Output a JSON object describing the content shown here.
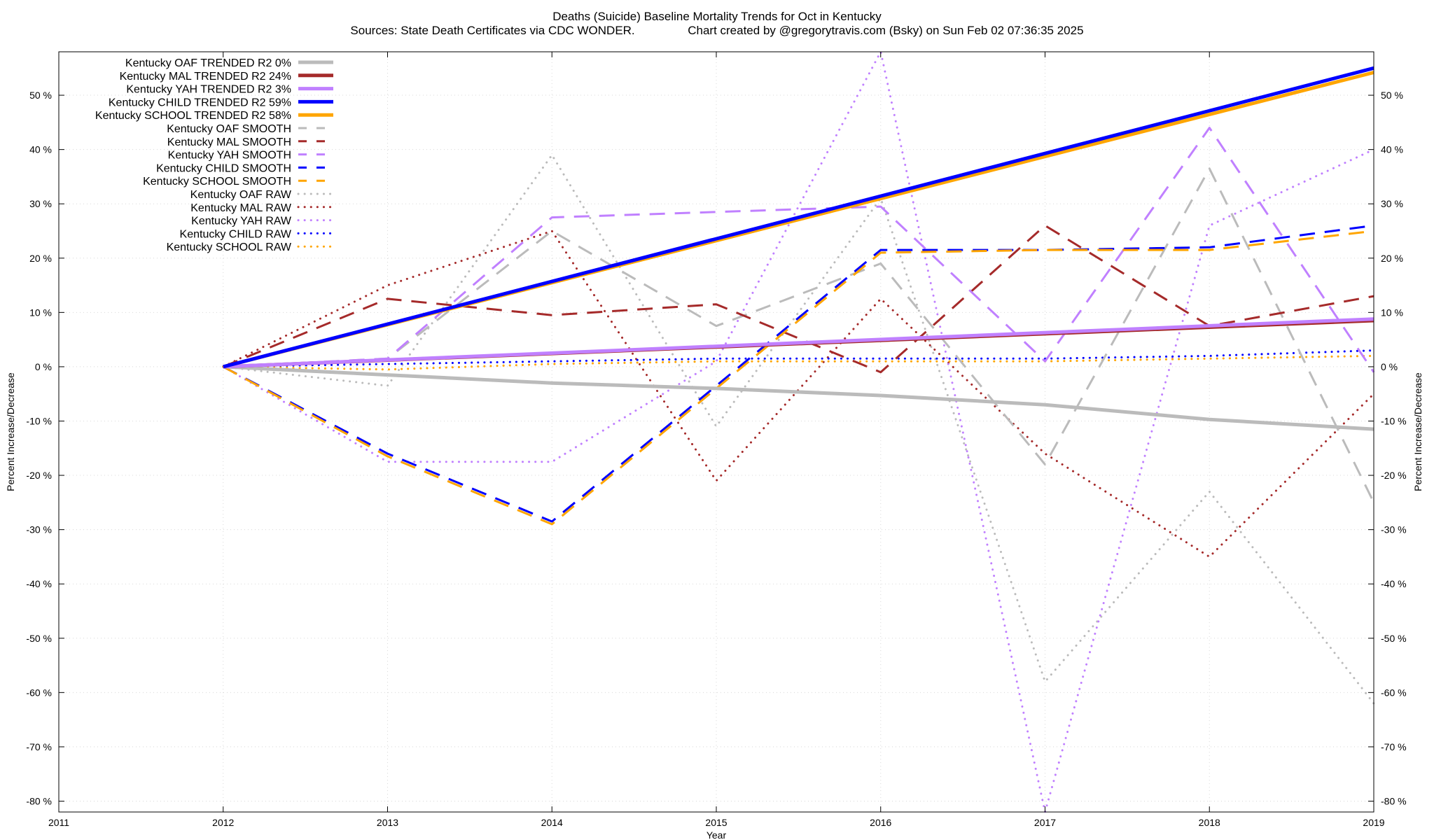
{
  "chart_data": {
    "type": "line",
    "title": "Deaths (Suicide)  Baseline Mortality Trends for Oct in Kentucky",
    "subtitle": "Sources: State Death Certificates via CDC WONDER.                Chart created by @gregorytravis.com (Bsky) on Sun Feb 02 07:36:35 2025",
    "xlabel": "Year",
    "ylabel": "Percent Increase/Decrease",
    "xlim": [
      2011,
      2019
    ],
    "ylim": [
      -82,
      58
    ],
    "x_ticks": [
      2011,
      2012,
      2013,
      2014,
      2015,
      2016,
      2017,
      2018,
      2019
    ],
    "x_tick_labels": [
      "2011",
      "2012",
      "2013",
      "2014",
      "2015",
      "2016",
      "2017",
      "2018",
      "2019"
    ],
    "y_ticks": [
      -80,
      -70,
      -60,
      -50,
      -40,
      -30,
      -20,
      -10,
      0,
      10,
      20,
      30,
      40,
      50
    ],
    "y_tick_labels": [
      "-80 %",
      "-70 %",
      "-60 %",
      "-50 %",
      "-40 %",
      "-30 %",
      "-20 %",
      "-10 %",
      "0 %",
      "10 %",
      "20 %",
      "30 %",
      "40 %",
      "50 %"
    ],
    "grid": true,
    "legend_position": "top-left",
    "series": [
      {
        "name": "Kentucky OAF TRENDED R2  0%",
        "style": "solid",
        "color": "#bbbbbb",
        "x": [
          2012,
          2013,
          2014,
          2015,
          2016,
          2017,
          2018,
          2019
        ],
        "values": [
          0,
          -1.5,
          -3,
          -4,
          -5.3,
          -7,
          -9.7,
          -11.5
        ]
      },
      {
        "name": "Kentucky MAL TRENDED R2  24%",
        "style": "solid",
        "color": "#a52a2a",
        "x": [
          2012,
          2019
        ],
        "values": [
          0,
          8.5
        ]
      },
      {
        "name": "Kentucky YAH TRENDED R2  3%",
        "style": "solid",
        "color": "#c080ff",
        "x": [
          2012,
          2019
        ],
        "values": [
          0,
          8.8
        ]
      },
      {
        "name": "Kentucky CHILD TRENDED R2  59%",
        "style": "solid",
        "color": "#0000ff",
        "x": [
          2012,
          2019
        ],
        "values": [
          0,
          55
        ]
      },
      {
        "name": "Kentucky SCHOOL TRENDED R2  58%",
        "style": "solid",
        "color": "#ffa500",
        "x": [
          2012,
          2019
        ],
        "values": [
          0,
          54.2
        ]
      },
      {
        "name": "Kentucky OAF SMOOTH",
        "style": "dashed",
        "color": "#bbbbbb",
        "x": [
          2012,
          2013,
          2014,
          2015,
          2016,
          2017,
          2018,
          2019
        ],
        "values": [
          0,
          1.5,
          25,
          7.5,
          19,
          -18,
          36.5,
          -25
        ]
      },
      {
        "name": "Kentucky MAL SMOOTH",
        "style": "dashed",
        "color": "#a52a2a",
        "x": [
          2012,
          2013,
          2014,
          2015,
          2016,
          2017,
          2018,
          2019
        ],
        "values": [
          0,
          12.5,
          9.5,
          11.5,
          -1,
          26,
          7.5,
          13
        ]
      },
      {
        "name": "Kentucky YAH SMOOTH",
        "style": "dashed",
        "color": "#c080ff",
        "x": [
          2012,
          2013,
          2014,
          2015,
          2016,
          2017,
          2018,
          2019
        ],
        "values": [
          0,
          1.5,
          27.5,
          28.5,
          29.5,
          1,
          44,
          -1
        ]
      },
      {
        "name": "Kentucky CHILD SMOOTH",
        "style": "dashed",
        "color": "#0000ff",
        "x": [
          2012,
          2013,
          2014,
          2015,
          2016,
          2017,
          2018,
          2019
        ],
        "values": [
          0,
          -16,
          -28.5,
          -3.5,
          21.5,
          21.5,
          22,
          26
        ]
      },
      {
        "name": "Kentucky SCHOOL SMOOTH",
        "style": "dashed",
        "color": "#ffa500",
        "x": [
          2012,
          2013,
          2014,
          2015,
          2016,
          2017,
          2018,
          2019
        ],
        "values": [
          0,
          -16.5,
          -29,
          -4,
          21,
          21.5,
          21.5,
          25
        ]
      },
      {
        "name": "Kentucky OAF RAW",
        "style": "dotted",
        "color": "#bbbbbb",
        "x": [
          2012,
          2013,
          2014,
          2015,
          2016,
          2017,
          2018,
          2019
        ],
        "values": [
          0,
          -3.5,
          39,
          -11,
          31,
          -58,
          -23,
          -62
        ]
      },
      {
        "name": "Kentucky MAL RAW",
        "style": "dotted",
        "color": "#a52a2a",
        "x": [
          2012,
          2013,
          2014,
          2015,
          2016,
          2017,
          2018,
          2019
        ],
        "values": [
          0,
          15,
          25,
          -21,
          12.5,
          -16,
          -35,
          -5
        ]
      },
      {
        "name": "Kentucky YAH RAW",
        "style": "dotted",
        "color": "#c080ff",
        "x": [
          2012,
          2013,
          2014,
          2015,
          2016,
          2017,
          2018,
          2019
        ],
        "values": [
          0,
          -17.5,
          -17.5,
          1,
          58,
          -82,
          26,
          40
        ]
      },
      {
        "name": "Kentucky CHILD RAW",
        "style": "dotted",
        "color": "#0000ff",
        "x": [
          2012,
          2013,
          2014,
          2015,
          2016,
          2017,
          2018,
          2019
        ],
        "values": [
          0,
          0.5,
          1,
          1.5,
          1.5,
          1.5,
          2,
          3
        ]
      },
      {
        "name": "Kentucky SCHOOL RAW",
        "style": "dotted",
        "color": "#ffa500",
        "x": [
          2012,
          2013,
          2014,
          2015,
          2016,
          2017,
          2018,
          2019
        ],
        "values": [
          0,
          -0.5,
          0.5,
          1,
          1,
          1,
          1.5,
          2
        ]
      }
    ]
  }
}
